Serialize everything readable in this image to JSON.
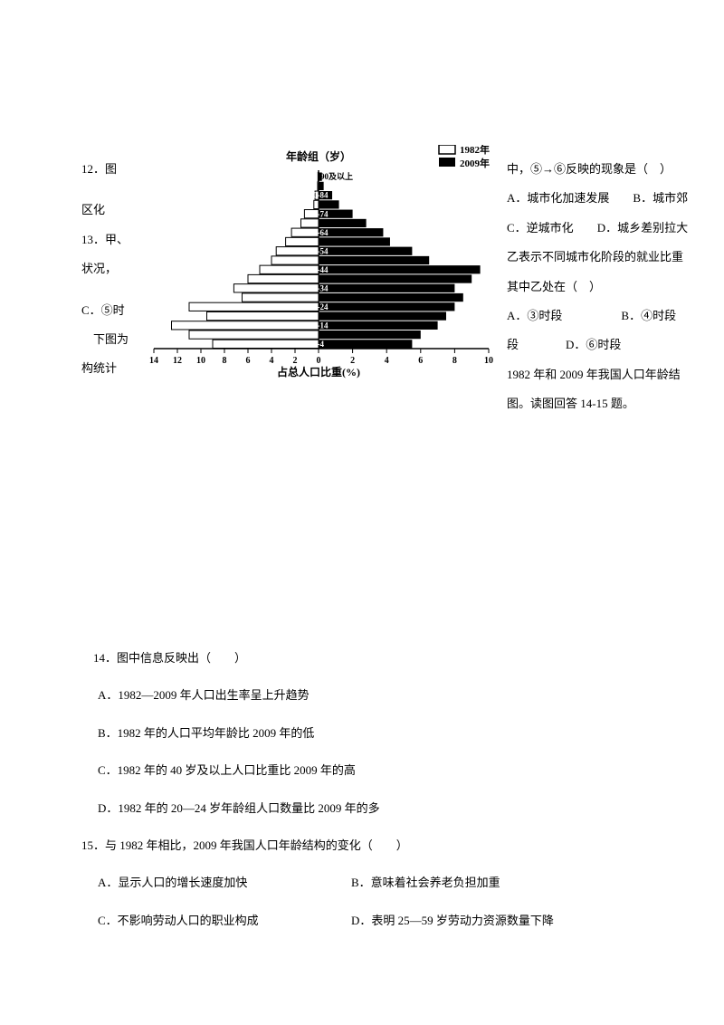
{
  "q12": {
    "prefix": "12．图",
    "stem_right": "中，⑤→⑥反映的现象是（　）",
    "optA": "A．城市化加速发展",
    "optB": "B．城市郊",
    "left_cont1": "区化",
    "optC": "C．逆城市化",
    "optD": "D．城乡差别拉大"
  },
  "q13": {
    "prefix": "13．甲、",
    "stem_right": "乙表示不同城市化阶段的就业比重",
    "left_cont1": "状况，",
    "right_cont1": "其中乙处在（　）",
    "optA": "A．③时段",
    "optB": "B．④时段",
    "optC_left": "C．⑤时",
    "optC_right": "段",
    "optD": "D．⑥时段"
  },
  "chart_intro": {
    "left1": "　下图为",
    "right1": "1982 年和 2009 年我国人口年龄结",
    "left2": "构统计",
    "right2": "图。读图回答 14-15 题。"
  },
  "q14": {
    "stem": "　14．图中信息反映出（　　）",
    "optA": "A．1982—2009 年人口出生率呈上升趋势",
    "optB": "B．1982 年的人口平均年龄比 2009 年的低",
    "optC": "C．1982 年的 40 岁及以上人口比重比 2009 年的高",
    "optD": "D．1982 年的 20—24 岁年龄组人口数量比 2009 年的多"
  },
  "q15": {
    "stem": "15．与 1982 年相比，2009 年我国人口年龄结构的变化（　　）",
    "optA": "A．显示人口的增长速度加快",
    "optB": "B．意味着社会养老负担加重",
    "optC": "C．不影响劳动人口的职业构成",
    "optD": "D．表明 25—59 岁劳动力资源数量下降"
  },
  "chart": {
    "title": "年龄组（岁）",
    "legend_1982": "1982年",
    "legend_2009": "2009年",
    "xlabel": "占总人口比重(%)",
    "title_fontsize": 11,
    "label_fontsize": 10,
    "background": "#ffffff",
    "bar_1982_fill": "#ffffff",
    "bar_1982_stroke": "#000000",
    "bar_2009_fill": "#000000",
    "age_labels": [
      "90及以上",
      "80-84",
      "70-74",
      "60-64",
      "50-54",
      "40-44",
      "30-34",
      "20-24",
      "10-14",
      "0-4"
    ],
    "x_ticks_left": [
      14,
      12,
      10,
      8,
      6,
      4,
      2,
      0
    ],
    "x_ticks_right": [
      0,
      2,
      4,
      6,
      8,
      10
    ],
    "data_1982": [
      0.05,
      0.08,
      0.3,
      0.4,
      1.2,
      1.5,
      2.3,
      2.8,
      3.6,
      4.0,
      5.0,
      6.0,
      7.2,
      6.5,
      11.0,
      9.5,
      12.5,
      11.0,
      9.0
    ],
    "data_2009": [
      0.2,
      0.3,
      0.8,
      1.2,
      2.0,
      2.8,
      3.8,
      4.2,
      5.5,
      6.5,
      9.5,
      9.0,
      8.0,
      8.5,
      8.0,
      7.5,
      7.0,
      6.0,
      5.5
    ]
  }
}
